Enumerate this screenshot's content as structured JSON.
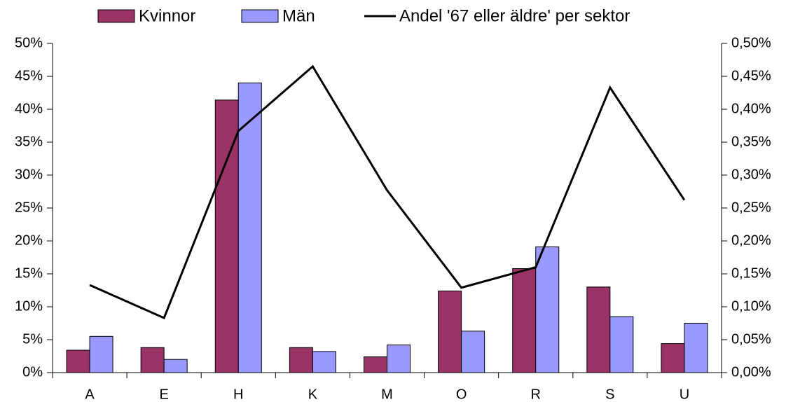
{
  "chart_data": {
    "type": "bar",
    "categories": [
      "A",
      "E",
      "H",
      "K",
      "M",
      "O",
      "R",
      "S",
      "U"
    ],
    "series": [
      {
        "name": "Kvinnor",
        "color": "#993366",
        "values": [
          3.4,
          3.8,
          41.4,
          3.8,
          2.4,
          12.4,
          15.8,
          13.0,
          4.4
        ]
      },
      {
        "name": "Män",
        "color": "#9999ff",
        "values": [
          5.5,
          2.0,
          44.0,
          3.2,
          4.2,
          6.3,
          19.1,
          8.5,
          7.5
        ]
      },
      {
        "name": "Andel '67 eller äldre' per sektor",
        "color": "#000000",
        "type": "line",
        "axis": "y2",
        "values": [
          0.133,
          0.083,
          0.367,
          0.465,
          0.277,
          0.129,
          0.16,
          0.433,
          0.262
        ]
      }
    ],
    "ylim": [
      0,
      50
    ],
    "yticks": [
      {
        "value": 0,
        "label": "0%"
      },
      {
        "value": 5,
        "label": "5%"
      },
      {
        "value": 10,
        "label": "10%"
      },
      {
        "value": 15,
        "label": "15%"
      },
      {
        "value": 20,
        "label": "20%"
      },
      {
        "value": 25,
        "label": "25%"
      },
      {
        "value": 30,
        "label": "30%"
      },
      {
        "value": 35,
        "label": "35%"
      },
      {
        "value": 40,
        "label": "40%"
      },
      {
        "value": 45,
        "label": "45%"
      },
      {
        "value": 50,
        "label": "50%"
      }
    ],
    "y2lim": [
      0,
      0.5
    ],
    "y2ticks": [
      {
        "value": 0,
        "label": "0,00%"
      },
      {
        "value": 0.05,
        "label": "0,05%"
      },
      {
        "value": 0.1,
        "label": "0,10%"
      },
      {
        "value": 0.15,
        "label": "0,15%"
      },
      {
        "value": 0.2,
        "label": "0,20%"
      },
      {
        "value": 0.25,
        "label": "0,25%"
      },
      {
        "value": 0.3,
        "label": "0,30%"
      },
      {
        "value": 0.35,
        "label": "0,35%"
      },
      {
        "value": 0.4,
        "label": "0,40%"
      },
      {
        "value": 0.45,
        "label": "0,45%"
      },
      {
        "value": 0.5,
        "label": "0,50%"
      }
    ],
    "legend": "top",
    "grid": false
  }
}
